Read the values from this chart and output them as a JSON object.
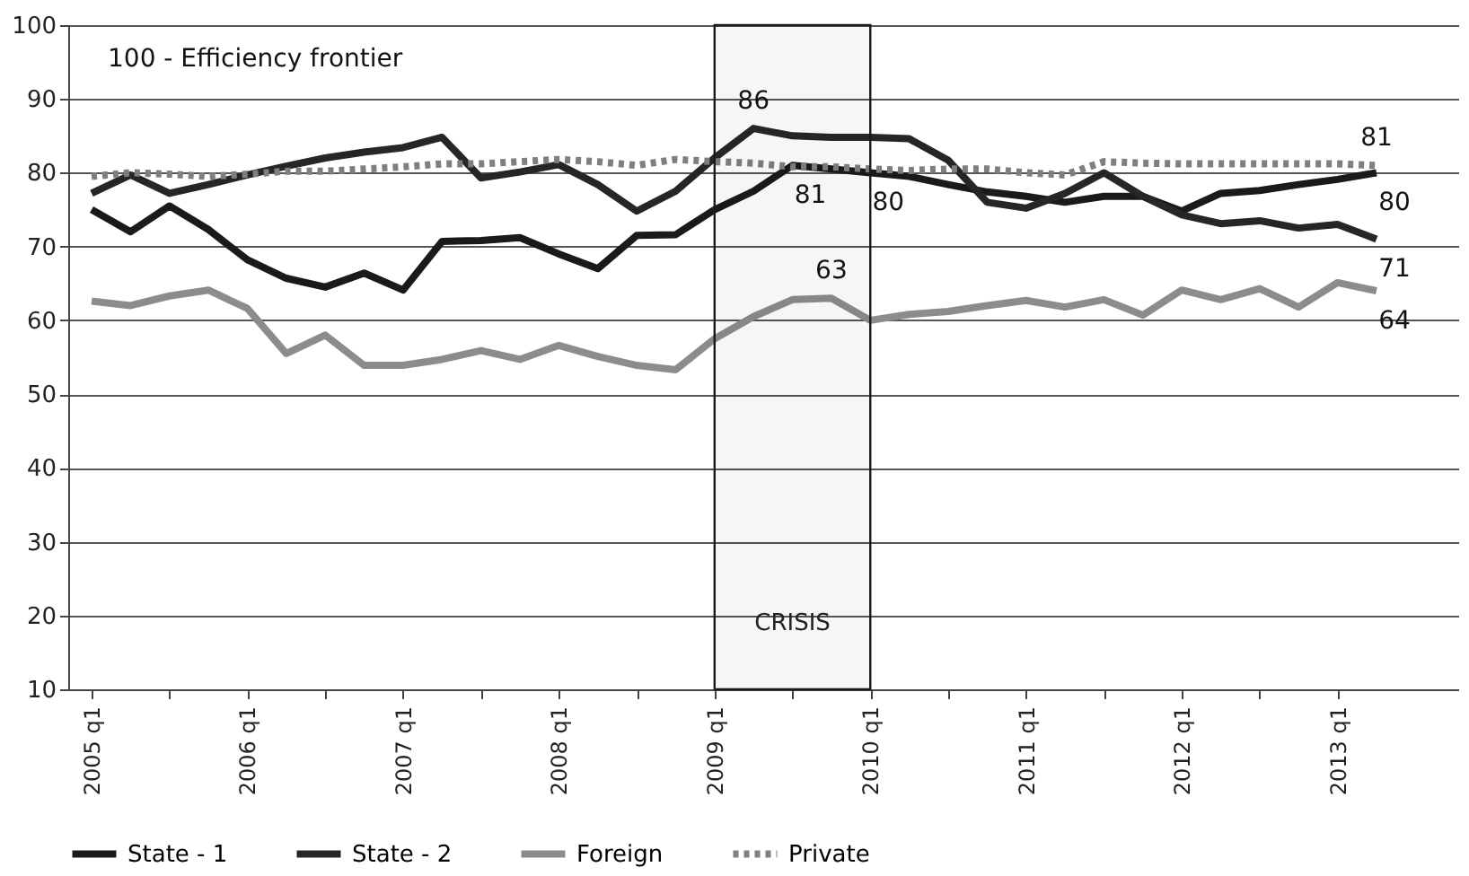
{
  "chart_data": {
    "type": "line",
    "categories": [
      "2005 q1",
      null,
      null,
      null,
      "2006 q1",
      null,
      null,
      null,
      "2007 q1",
      null,
      null,
      null,
      "2008 q1",
      null,
      null,
      null,
      "2009 q1",
      null,
      null,
      null,
      "2010 q1",
      null,
      null,
      null,
      "2011 q1",
      null,
      null,
      null,
      "2012 q1",
      null,
      null,
      null,
      "2013 q1",
      null
    ],
    "series": [
      {
        "name": "State - 1",
        "color": "#1a1a1a",
        "values": [
          75,
          72,
          75.5,
          72.3,
          68.2,
          65.7,
          64.5,
          66.4,
          64.1,
          70.7,
          70.8,
          71.2,
          69,
          67,
          71.5,
          71.6,
          75,
          77.5,
          81,
          80.5,
          80,
          79.5,
          78.4,
          77.4,
          76.8,
          76,
          76.8,
          76.8,
          74.8,
          77.2,
          77.6,
          78.4,
          79.1,
          80
        ],
        "value_labels": [
          null,
          null,
          null,
          null,
          null,
          null,
          null,
          null,
          null,
          null,
          null,
          null,
          null,
          null,
          null,
          null,
          null,
          null,
          "81",
          null,
          "80",
          null,
          null,
          null,
          null,
          null,
          null,
          null,
          null,
          null,
          null,
          null,
          null,
          "80"
        ]
      },
      {
        "name": "State - 2",
        "color": "#262626",
        "values": [
          77.2,
          79.7,
          77.2,
          78.4,
          79.7,
          80.9,
          82,
          82.8,
          83.4,
          84.8,
          79.3,
          80.1,
          81.1,
          78.4,
          74.8,
          77.5,
          82,
          86,
          85,
          84.8,
          84.8,
          84.6,
          81.7,
          76,
          75.2,
          77.2,
          80,
          76.8,
          74.3,
          73.1,
          73.5,
          72.5,
          73,
          71
        ],
        "value_labels": [
          null,
          null,
          null,
          null,
          null,
          null,
          null,
          null,
          null,
          null,
          null,
          null,
          null,
          null,
          null,
          null,
          null,
          "86",
          null,
          null,
          null,
          null,
          null,
          null,
          null,
          null,
          null,
          null,
          null,
          null,
          null,
          null,
          null,
          "71"
        ]
      },
      {
        "name": "Foreign",
        "color": "#8c8c8c",
        "values": [
          62.6,
          62,
          63.3,
          64.1,
          61.6,
          55.5,
          58,
          53.9,
          53.9,
          54.7,
          55.9,
          54.7,
          56.6,
          55.1,
          53.9,
          53.3,
          57.5,
          60.5,
          62.8,
          63,
          60,
          60.8,
          61.2,
          62,
          62.7,
          61.8,
          62.8,
          60.7,
          64.1,
          62.8,
          64.3,
          61.8,
          65.1,
          64
        ],
        "value_labels": [
          null,
          null,
          null,
          null,
          null,
          null,
          null,
          null,
          null,
          null,
          null,
          null,
          null,
          null,
          null,
          null,
          null,
          null,
          null,
          "63",
          null,
          null,
          null,
          null,
          null,
          null,
          null,
          null,
          null,
          null,
          null,
          null,
          null,
          "64"
        ]
      },
      {
        "name": "Private",
        "color": "#7f7f7f",
        "line_style": "dotted",
        "values": [
          79.5,
          80,
          79.8,
          79.5,
          79.8,
          80.2,
          80.2,
          80.5,
          80.8,
          81.2,
          81.2,
          81.5,
          81.8,
          81.5,
          81,
          81.8,
          81.5,
          81.3,
          80.8,
          80.8,
          80.5,
          80.3,
          80.5,
          80.5,
          80,
          79.7,
          81.5,
          81.3,
          81.2,
          81.2,
          81.2,
          81.2,
          81.2,
          81
        ],
        "value_labels": [
          null,
          null,
          null,
          null,
          null,
          null,
          null,
          null,
          null,
          null,
          null,
          null,
          null,
          null,
          null,
          null,
          null,
          null,
          null,
          null,
          null,
          null,
          null,
          null,
          null,
          null,
          null,
          null,
          null,
          null,
          null,
          null,
          null,
          "81"
        ]
      }
    ],
    "ylim": [
      10,
      100
    ],
    "yticks": [
      10,
      20,
      30,
      40,
      50,
      60,
      70,
      80,
      90,
      100
    ],
    "grid": "y",
    "legend": "bottom",
    "bands": [
      {
        "axis": "x",
        "from": "2009 q1",
        "to": "2010 q1",
        "label": "CRISIS",
        "color": "#1a1a1a"
      }
    ],
    "annotations": [
      "100 - Efficiency frontier"
    ]
  }
}
